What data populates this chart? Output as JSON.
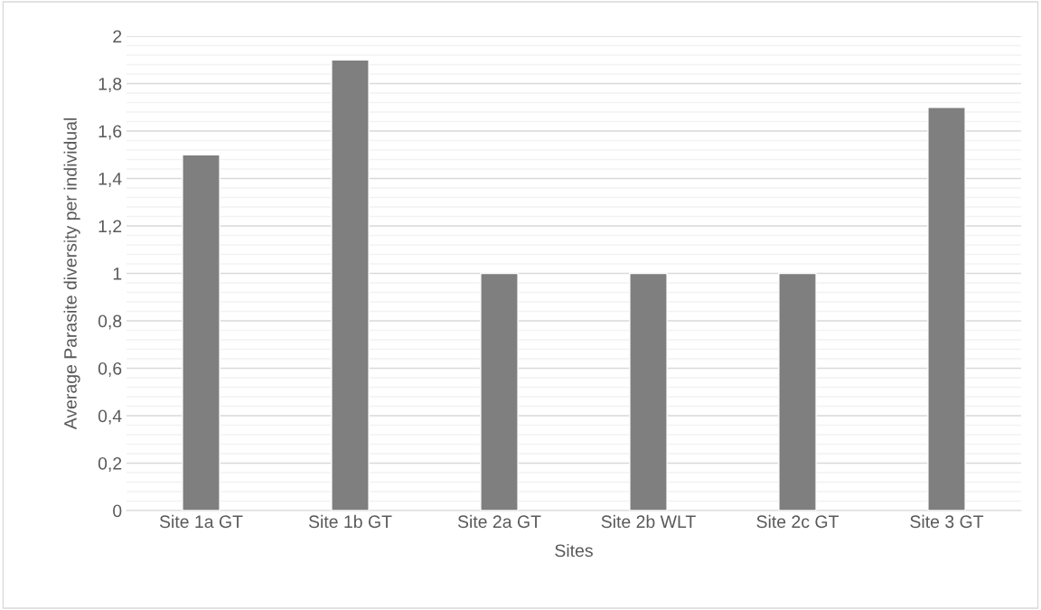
{
  "chart_data": {
    "type": "bar",
    "xlabel": "Sites",
    "ylabel": "Average Parasite diversity per individual",
    "categories": [
      "Site 1a GT",
      "Site 1b GT",
      "Site 2a GT",
      "Site 2b WLT",
      "Site 2c GT",
      "Site 3 GT"
    ],
    "values": [
      1.5,
      1.9,
      1.0,
      1.0,
      1.0,
      1.7
    ],
    "color": "#7f7f7f",
    "ylim": [
      0,
      2
    ],
    "yticks": [
      0,
      {
        "value": 0.2,
        "label": "0,2"
      },
      {
        "value": 0.4,
        "label": "0,4"
      },
      {
        "value": 0.6,
        "label": "0,6"
      },
      {
        "value": 0.8,
        "label": "0,8"
      },
      1,
      {
        "value": 1.2,
        "label": "1,2"
      },
      {
        "value": 1.4,
        "label": "1,4"
      },
      {
        "value": 1.6,
        "label": "1,6"
      },
      {
        "value": 1.8,
        "label": "1,8"
      },
      2
    ],
    "grid": "y"
  }
}
